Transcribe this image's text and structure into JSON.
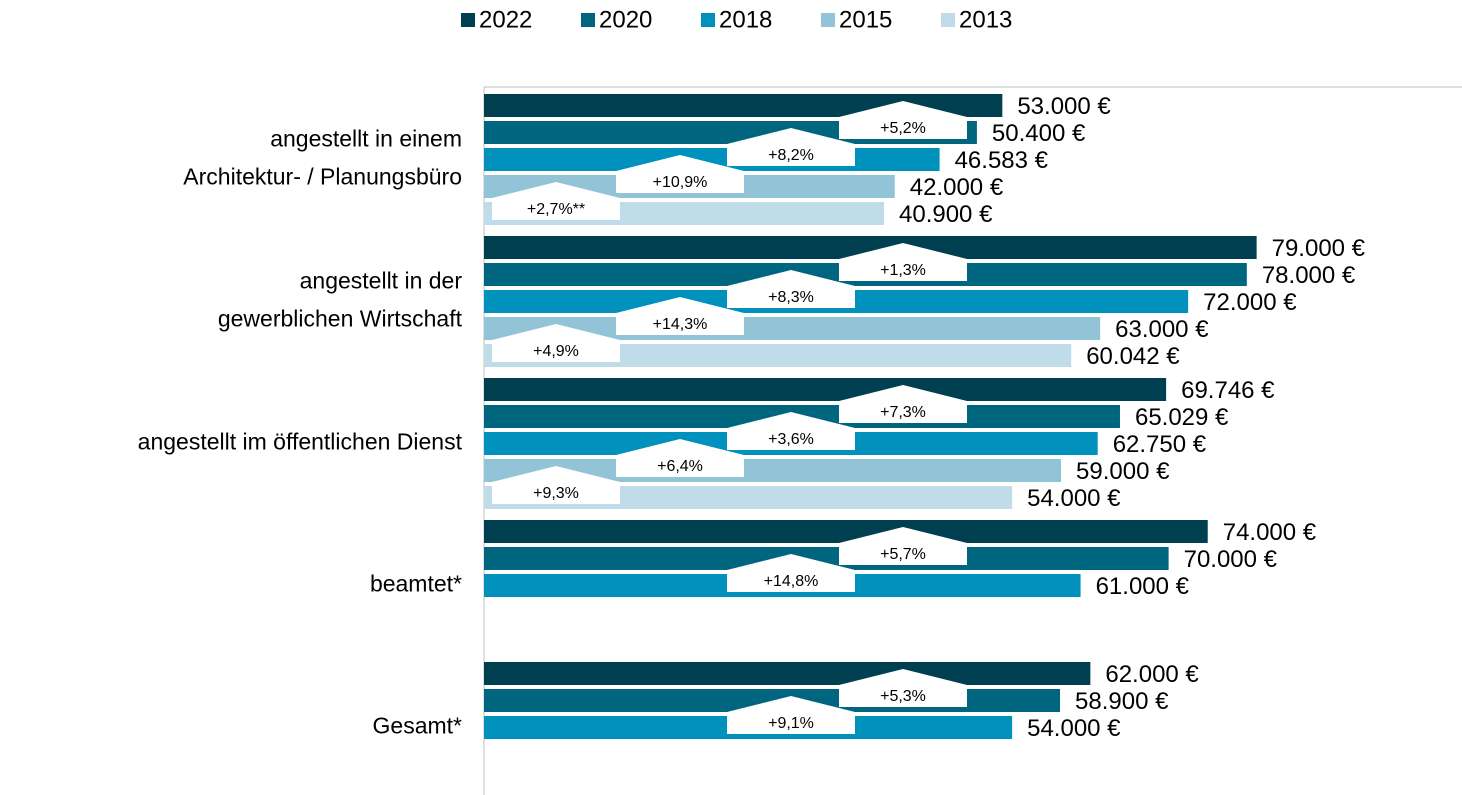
{
  "chart_data": {
    "type": "hbar",
    "categories": [
      [
        "angestellt in einem",
        "Architektur- / Planungsbüro"
      ],
      [
        "angestellt in der",
        "gewerblichen Wirtschaft"
      ],
      [
        "angestellt im öffentlichen Dienst"
      ],
      [
        "beamtet*"
      ],
      [
        "Gesamt*"
      ]
    ],
    "xlim": [
      0,
      100000
    ],
    "series": [
      {
        "name": "2022",
        "color": "#003f50",
        "values": [
          53000,
          79000,
          69746,
          74000,
          62000
        ],
        "value_labels": [
          "53.000 €",
          "79.000 €",
          "69.746 €",
          "74.000 €",
          "62.000 €"
        ]
      },
      {
        "name": "2020",
        "color": "#006680",
        "values": [
          50400,
          78000,
          65029,
          70000,
          58900
        ],
        "value_labels": [
          "50.400 €",
          "78.000 €",
          "65.029 €",
          "70.000 €",
          "58.900 €"
        ],
        "changes": [
          "+5,2%",
          "+1,3%",
          "+7,3%",
          "+5,7%",
          "+5,3%"
        ]
      },
      {
        "name": "2018",
        "color": "#0091bd",
        "values": [
          46583,
          72000,
          62750,
          61000,
          54000
        ],
        "value_labels": [
          "46.583 €",
          "72.000 €",
          "62.750 €",
          "61.000 €",
          "54.000 €"
        ],
        "changes": [
          "+8,2%",
          "+8,3%",
          "+3,6%",
          "+14,8%",
          "+9,1%"
        ]
      },
      {
        "name": "2015",
        "color": "#92c3d6",
        "values": [
          42000,
          63000,
          59000,
          null,
          null
        ],
        "value_labels": [
          "42.000 €",
          "63.000 €",
          "59.000 €",
          null,
          null
        ],
        "changes": [
          "+10,9%",
          "+14,3%",
          "+6,4%",
          null,
          null
        ]
      },
      {
        "name": "2013",
        "color": "#c0dce8",
        "values": [
          40900,
          60042,
          54000,
          null,
          null
        ],
        "value_labels": [
          "40.900 €",
          "60.042 €",
          "54.000 €",
          null,
          null
        ],
        "changes": [
          "+2,7%**",
          "+4,9%",
          "+9,3%",
          null,
          null
        ]
      }
    ]
  }
}
